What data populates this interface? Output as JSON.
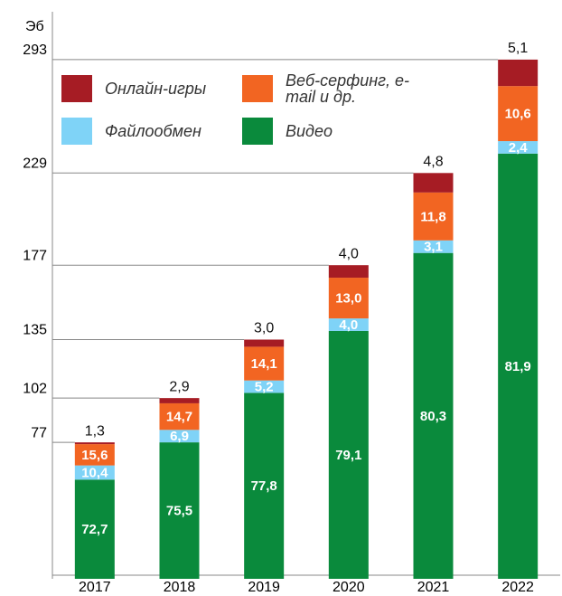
{
  "chart_data": {
    "type": "stacked-bar",
    "y_label": "Эб",
    "categories": [
      "2017",
      "2018",
      "2019",
      "2020",
      "2021",
      "2022"
    ],
    "series": [
      {
        "name": "Онлайн-игры",
        "color": "#a61c24",
        "values": [
          1.3,
          2.9,
          3.0,
          4.0,
          4.8,
          5.1
        ],
        "value_labels": [
          "1,3",
          "2,9",
          "3,0",
          "4,0",
          "4,8",
          "5,1"
        ]
      },
      {
        "name": "Веб-серфинг, e-mail и др.",
        "color": "#f26522",
        "values": [
          15.6,
          14.7,
          14.1,
          13.0,
          11.8,
          10.6
        ],
        "value_labels": [
          "15,6",
          "14,7",
          "14,1",
          "13,0",
          "11,8",
          "10,6"
        ]
      },
      {
        "name": "Файлообмен",
        "color": "#7fd3f7",
        "values": [
          10.4,
          6.9,
          5.2,
          4.0,
          3.1,
          2.4
        ],
        "value_labels": [
          "10,4",
          "6,9",
          "5,2",
          "4,0",
          "3,1",
          "2,4"
        ]
      },
      {
        "name": "Видео",
        "color": "#0a8a3c",
        "values": [
          72.7,
          75.5,
          77.8,
          79.1,
          80.3,
          81.9
        ],
        "value_labels": [
          "72,7",
          "75,5",
          "77,8",
          "79,1",
          "80,3",
          "81,9"
        ]
      }
    ],
    "ylim": [
      0,
      320
    ],
    "yticks": [
      77,
      102,
      135,
      177,
      229,
      293
    ]
  }
}
